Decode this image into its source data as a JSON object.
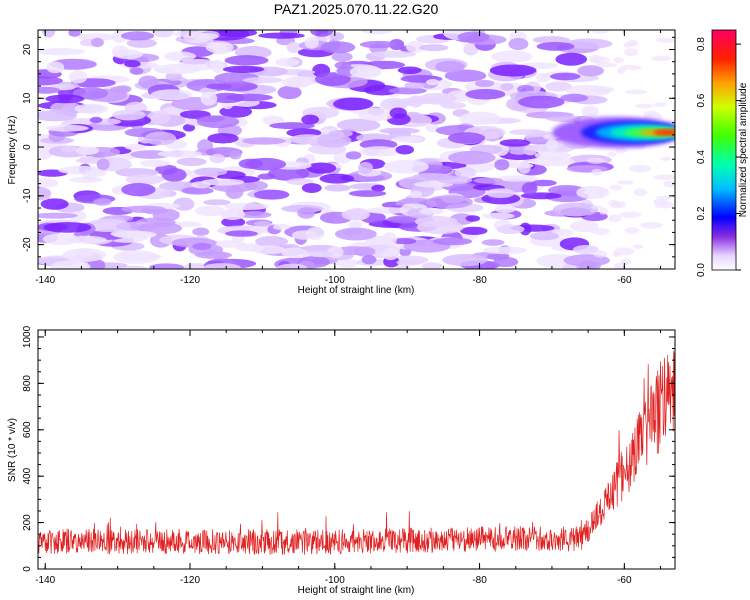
{
  "title": "PAZ1.2025.070.11.22.G20",
  "chart_data": [
    {
      "type": "heatmap",
      "xlabel": "Height of straight line (km)",
      "ylabel": "Frequency (Hz)",
      "xlim": [
        -141,
        -53
      ],
      "ylim": [
        -25,
        24
      ],
      "xticks": [
        -140,
        -120,
        -100,
        -80,
        -60
      ],
      "yticks": [
        -20,
        -10,
        0,
        10,
        20
      ],
      "colorbar": {
        "label": "Normalized spectral amplitude",
        "range": [
          0,
          0.85
        ],
        "ticks": [
          0.0,
          0.2,
          0.4,
          0.6,
          0.8
        ]
      },
      "features": [
        {
          "x_from": -70,
          "x_to": -53,
          "y": 3,
          "peak": 0.85
        }
      ]
    },
    {
      "type": "line",
      "xlabel": "Height of straight line (km)",
      "ylabel": "SNR (10 * v/v)",
      "xlim": [
        -141,
        -53
      ],
      "ylim": [
        0,
        1030
      ],
      "xticks": [
        -140,
        -120,
        -100,
        -80,
        -60
      ],
      "yticks": [
        0,
        200,
        400,
        600,
        800,
        1000
      ],
      "series_color": "#e02020",
      "trend": [
        {
          "x": -141,
          "y": 120
        },
        {
          "x": -100,
          "y": 115
        },
        {
          "x": -80,
          "y": 130
        },
        {
          "x": -66,
          "y": 130
        },
        {
          "x": -63,
          "y": 260
        },
        {
          "x": -60,
          "y": 420
        },
        {
          "x": -57,
          "y": 580
        },
        {
          "x": -55,
          "y": 700
        },
        {
          "x": -53,
          "y": 780
        }
      ]
    }
  ]
}
